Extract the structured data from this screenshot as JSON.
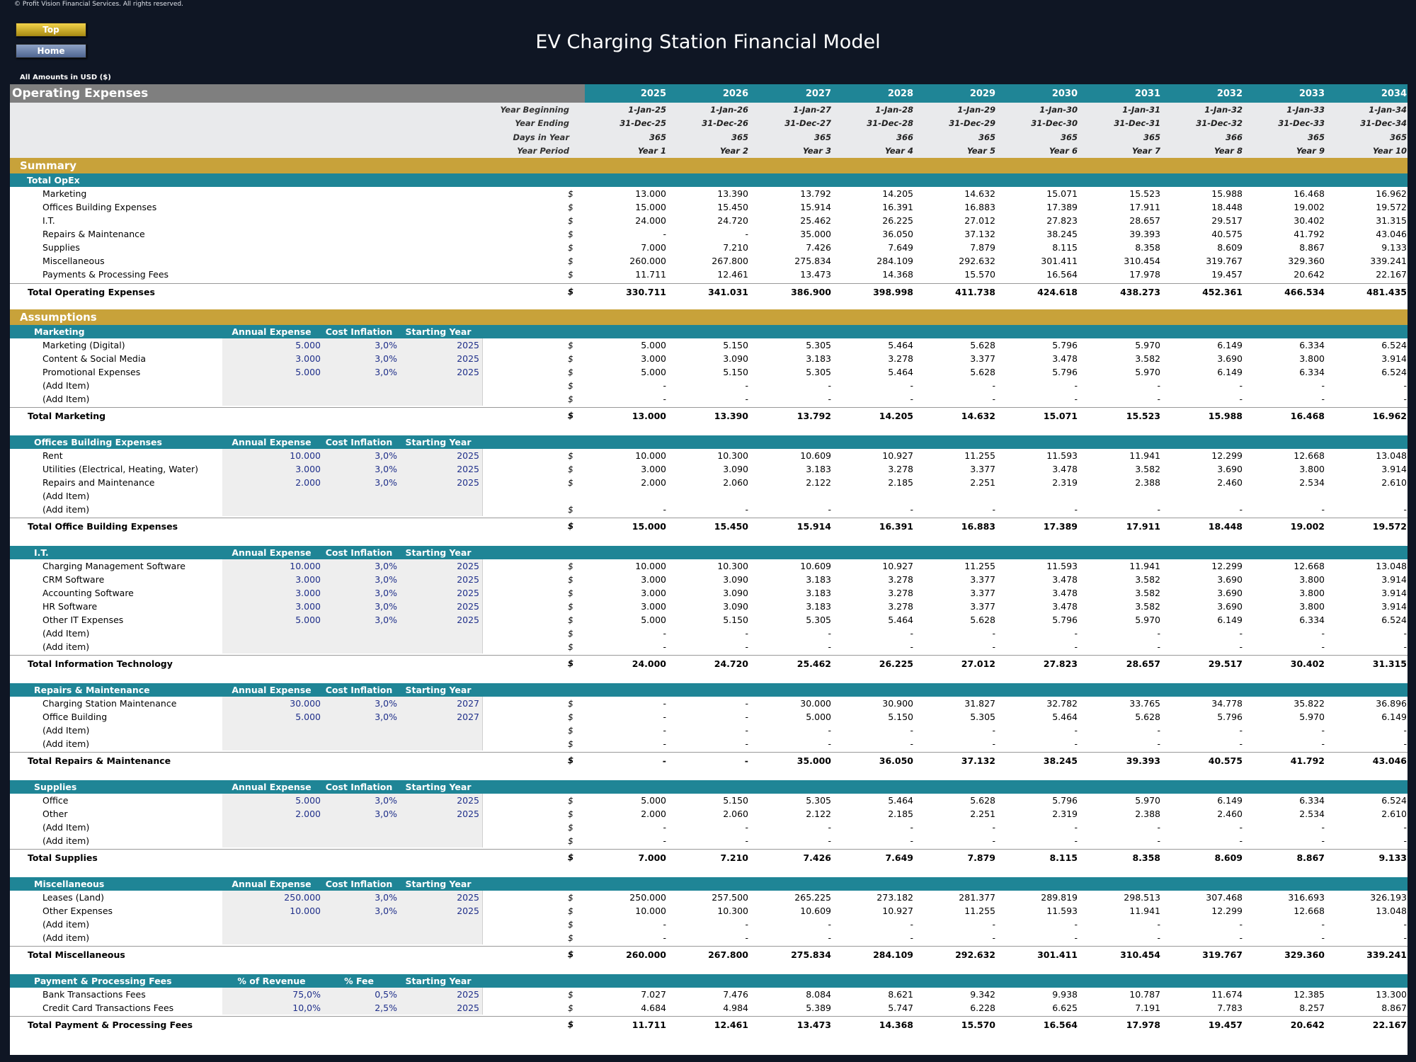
{
  "copyright": "© Profit Vision Financial Services. All rights reserved.",
  "nav": {
    "top": "Top",
    "home": "Home"
  },
  "title": "EV Charging Station Financial Model",
  "amounts_note": "All Amounts in  USD ($)",
  "section_title": "Operating Expenses",
  "years": [
    "2025",
    "2026",
    "2027",
    "2028",
    "2029",
    "2030",
    "2031",
    "2032",
    "2033",
    "2034"
  ],
  "header_rows": [
    {
      "label": "Year Beginning",
      "values": [
        "1-Jan-25",
        "1-Jan-26",
        "1-Jan-27",
        "1-Jan-28",
        "1-Jan-29",
        "1-Jan-30",
        "1-Jan-31",
        "1-Jan-32",
        "1-Jan-33",
        "1-Jan-34"
      ]
    },
    {
      "label": "Year Ending",
      "values": [
        "31-Dec-25",
        "31-Dec-26",
        "31-Dec-27",
        "31-Dec-28",
        "31-Dec-29",
        "31-Dec-30",
        "31-Dec-31",
        "31-Dec-32",
        "31-Dec-33",
        "31-Dec-34"
      ]
    },
    {
      "label": "Days in Year",
      "values": [
        "365",
        "365",
        "365",
        "366",
        "365",
        "365",
        "365",
        "366",
        "365",
        "365"
      ]
    },
    {
      "label": "Year Period",
      "values": [
        "Year 1",
        "Year 2",
        "Year 3",
        "Year 4",
        "Year 5",
        "Year 6",
        "Year 7",
        "Year 8",
        "Year 9",
        "Year 10"
      ]
    }
  ],
  "summary": {
    "title": "Summary",
    "group": "Total OpEx",
    "currency": "$",
    "rows": [
      {
        "label": "Marketing",
        "values": [
          "13.000",
          "13.390",
          "13.792",
          "14.205",
          "14.632",
          "15.071",
          "15.523",
          "15.988",
          "16.468",
          "16.962"
        ]
      },
      {
        "label": "Offices Building Expenses",
        "values": [
          "15.000",
          "15.450",
          "15.914",
          "16.391",
          "16.883",
          "17.389",
          "17.911",
          "18.448",
          "19.002",
          "19.572"
        ]
      },
      {
        "label": "I.T.",
        "values": [
          "24.000",
          "24.720",
          "25.462",
          "26.225",
          "27.012",
          "27.823",
          "28.657",
          "29.517",
          "30.402",
          "31.315"
        ]
      },
      {
        "label": "Repairs & Maintenance",
        "values": [
          "-",
          "-",
          "35.000",
          "36.050",
          "37.132",
          "38.245",
          "39.393",
          "40.575",
          "41.792",
          "43.046"
        ]
      },
      {
        "label": "Supplies",
        "values": [
          "7.000",
          "7.210",
          "7.426",
          "7.649",
          "7.879",
          "8.115",
          "8.358",
          "8.609",
          "8.867",
          "9.133"
        ]
      },
      {
        "label": "Miscellaneous",
        "values": [
          "260.000",
          "267.800",
          "275.834",
          "284.109",
          "292.632",
          "301.411",
          "310.454",
          "319.767",
          "329.360",
          "339.241"
        ]
      },
      {
        "label": "Payments & Processing Fees",
        "values": [
          "11.711",
          "12.461",
          "13.473",
          "14.368",
          "15.570",
          "16.564",
          "17.978",
          "19.457",
          "20.642",
          "22.167"
        ]
      }
    ],
    "total": {
      "label": "Total Operating Expenses",
      "values": [
        "330.711",
        "341.031",
        "386.900",
        "398.998",
        "411.738",
        "424.618",
        "438.273",
        "452.361",
        "466.534",
        "481.435"
      ]
    }
  },
  "assumptions_title": "Assumptions",
  "groups": [
    {
      "name": "Marketing",
      "cols": [
        "Annual Expense",
        "Cost Inflation",
        "Starting Year"
      ],
      "rows": [
        {
          "label": "Marketing (Digital)",
          "a": "5.000",
          "b": "3,0%",
          "c": "2025",
          "cur": "$",
          "values": [
            "5.000",
            "5.150",
            "5.305",
            "5.464",
            "5.628",
            "5.796",
            "5.970",
            "6.149",
            "6.334",
            "6.524"
          ]
        },
        {
          "label": "Content & Social Media",
          "a": "3.000",
          "b": "3,0%",
          "c": "2025",
          "cur": "$",
          "values": [
            "3.000",
            "3.090",
            "3.183",
            "3.278",
            "3.377",
            "3.478",
            "3.582",
            "3.690",
            "3.800",
            "3.914"
          ]
        },
        {
          "label": "Promotional Expenses",
          "a": "5.000",
          "b": "3,0%",
          "c": "2025",
          "cur": "$",
          "values": [
            "5.000",
            "5.150",
            "5.305",
            "5.464",
            "5.628",
            "5.796",
            "5.970",
            "6.149",
            "6.334",
            "6.524"
          ]
        },
        {
          "label": "(Add Item)",
          "a": "",
          "b": "",
          "c": "",
          "cur": "$",
          "values": [
            "-",
            "-",
            "-",
            "-",
            "-",
            "-",
            "-",
            "-",
            "-",
            "-"
          ]
        },
        {
          "label": "(Add Item)",
          "a": "",
          "b": "",
          "c": "",
          "cur": "$",
          "values": [
            "-",
            "-",
            "-",
            "-",
            "-",
            "-",
            "-",
            "-",
            "-",
            "-"
          ]
        }
      ],
      "total": {
        "label": "Total Marketing",
        "values": [
          "13.000",
          "13.390",
          "13.792",
          "14.205",
          "14.632",
          "15.071",
          "15.523",
          "15.988",
          "16.468",
          "16.962"
        ]
      }
    },
    {
      "name": "Offices Building Expenses",
      "cols": [
        "Annual Expense",
        "Cost Inflation",
        "Starting Year"
      ],
      "rows": [
        {
          "label": "Rent",
          "a": "10.000",
          "b": "3,0%",
          "c": "2025",
          "cur": "$",
          "values": [
            "10.000",
            "10.300",
            "10.609",
            "10.927",
            "11.255",
            "11.593",
            "11.941",
            "12.299",
            "12.668",
            "13.048"
          ]
        },
        {
          "label": "Utilities (Electrical, Heating, Water)",
          "a": "3.000",
          "b": "3,0%",
          "c": "2025",
          "cur": "$",
          "values": [
            "3.000",
            "3.090",
            "3.183",
            "3.278",
            "3.377",
            "3.478",
            "3.582",
            "3.690",
            "3.800",
            "3.914"
          ]
        },
        {
          "label": "Repairs and Maintenance",
          "a": "2.000",
          "b": "3,0%",
          "c": "2025",
          "cur": "$",
          "values": [
            "2.000",
            "2.060",
            "2.122",
            "2.185",
            "2.251",
            "2.319",
            "2.388",
            "2.460",
            "2.534",
            "2.610"
          ]
        },
        {
          "label": "(Add Item)",
          "a": "",
          "b": "",
          "c": "",
          "cur": "",
          "values": [
            "",
            "",
            "",
            "",
            "",
            "",
            "",
            "",
            "",
            ""
          ]
        },
        {
          "label": "(Add item)",
          "a": "",
          "b": "",
          "c": "",
          "cur": "$",
          "values": [
            "-",
            "-",
            "-",
            "-",
            "-",
            "-",
            "-",
            "-",
            "-",
            "-"
          ]
        }
      ],
      "total": {
        "label": "Total Office Building Expenses",
        "values": [
          "15.000",
          "15.450",
          "15.914",
          "16.391",
          "16.883",
          "17.389",
          "17.911",
          "18.448",
          "19.002",
          "19.572"
        ]
      }
    },
    {
      "name": "I.T.",
      "cols": [
        "Annual Expense",
        "Cost Inflation",
        "Starting Year"
      ],
      "rows": [
        {
          "label": "Charging Management Software",
          "a": "10.000",
          "b": "3,0%",
          "c": "2025",
          "cur": "$",
          "values": [
            "10.000",
            "10.300",
            "10.609",
            "10.927",
            "11.255",
            "11.593",
            "11.941",
            "12.299",
            "12.668",
            "13.048"
          ]
        },
        {
          "label": "CRM Software",
          "a": "3.000",
          "b": "3,0%",
          "c": "2025",
          "cur": "$",
          "values": [
            "3.000",
            "3.090",
            "3.183",
            "3.278",
            "3.377",
            "3.478",
            "3.582",
            "3.690",
            "3.800",
            "3.914"
          ]
        },
        {
          "label": "Accounting Software",
          "a": "3.000",
          "b": "3,0%",
          "c": "2025",
          "cur": "$",
          "values": [
            "3.000",
            "3.090",
            "3.183",
            "3.278",
            "3.377",
            "3.478",
            "3.582",
            "3.690",
            "3.800",
            "3.914"
          ]
        },
        {
          "label": "HR Software",
          "a": "3.000",
          "b": "3,0%",
          "c": "2025",
          "cur": "$",
          "values": [
            "3.000",
            "3.090",
            "3.183",
            "3.278",
            "3.377",
            "3.478",
            "3.582",
            "3.690",
            "3.800",
            "3.914"
          ]
        },
        {
          "label": "Other IT Expenses",
          "a": "5.000",
          "b": "3,0%",
          "c": "2025",
          "cur": "$",
          "values": [
            "5.000",
            "5.150",
            "5.305",
            "5.464",
            "5.628",
            "5.796",
            "5.970",
            "6.149",
            "6.334",
            "6.524"
          ]
        },
        {
          "label": "(Add Item)",
          "a": "",
          "b": "",
          "c": "",
          "cur": "$",
          "values": [
            "-",
            "-",
            "-",
            "-",
            "-",
            "-",
            "-",
            "-",
            "-",
            "-"
          ]
        },
        {
          "label": "(Add item)",
          "a": "",
          "b": "",
          "c": "",
          "cur": "$",
          "values": [
            "-",
            "-",
            "-",
            "-",
            "-",
            "-",
            "-",
            "-",
            "-",
            "-"
          ]
        }
      ],
      "total": {
        "label": "Total Information Technology",
        "values": [
          "24.000",
          "24.720",
          "25.462",
          "26.225",
          "27.012",
          "27.823",
          "28.657",
          "29.517",
          "30.402",
          "31.315"
        ]
      }
    },
    {
      "name": "Repairs & Maintenance",
      "cols": [
        "Annual Expense",
        "Cost Inflation",
        "Starting Year"
      ],
      "rows": [
        {
          "label": "Charging Station Maintenance",
          "a": "30.000",
          "b": "3,0%",
          "c": "2027",
          "cur": "$",
          "values": [
            "-",
            "-",
            "30.000",
            "30.900",
            "31.827",
            "32.782",
            "33.765",
            "34.778",
            "35.822",
            "36.896"
          ]
        },
        {
          "label": "Office Building",
          "a": "5.000",
          "b": "3,0%",
          "c": "2027",
          "cur": "$",
          "values": [
            "-",
            "-",
            "5.000",
            "5.150",
            "5.305",
            "5.464",
            "5.628",
            "5.796",
            "5.970",
            "6.149"
          ]
        },
        {
          "label": "(Add Item)",
          "a": "",
          "b": "",
          "c": "",
          "cur": "$",
          "values": [
            "-",
            "-",
            "-",
            "-",
            "-",
            "-",
            "-",
            "-",
            "-",
            "-"
          ]
        },
        {
          "label": "(Add item)",
          "a": "",
          "b": "",
          "c": "",
          "cur": "$",
          "values": [
            "-",
            "-",
            "-",
            "-",
            "-",
            "-",
            "-",
            "-",
            "-",
            "-"
          ]
        }
      ],
      "total": {
        "label": "Total Repairs & Maintenance",
        "values": [
          "-",
          "-",
          "35.000",
          "36.050",
          "37.132",
          "38.245",
          "39.393",
          "40.575",
          "41.792",
          "43.046"
        ]
      }
    },
    {
      "name": "Supplies",
      "cols": [
        "Annual Expense",
        "Cost Inflation",
        "Starting Year"
      ],
      "rows": [
        {
          "label": "Office",
          "a": "5.000",
          "b": "3,0%",
          "c": "2025",
          "cur": "$",
          "values": [
            "5.000",
            "5.150",
            "5.305",
            "5.464",
            "5.628",
            "5.796",
            "5.970",
            "6.149",
            "6.334",
            "6.524"
          ]
        },
        {
          "label": "Other",
          "a": "2.000",
          "b": "3,0%",
          "c": "2025",
          "cur": "$",
          "values": [
            "2.000",
            "2.060",
            "2.122",
            "2.185",
            "2.251",
            "2.319",
            "2.388",
            "2.460",
            "2.534",
            "2.610"
          ]
        },
        {
          "label": "(Add Item)",
          "a": "",
          "b": "",
          "c": "",
          "cur": "$",
          "values": [
            "-",
            "-",
            "-",
            "-",
            "-",
            "-",
            "-",
            "-",
            "-",
            "-"
          ]
        },
        {
          "label": "(Add item)",
          "a": "",
          "b": "",
          "c": "",
          "cur": "$",
          "values": [
            "-",
            "-",
            "-",
            "-",
            "-",
            "-",
            "-",
            "-",
            "-",
            "-"
          ]
        }
      ],
      "total": {
        "label": "Total Supplies",
        "values": [
          "7.000",
          "7.210",
          "7.426",
          "7.649",
          "7.879",
          "8.115",
          "8.358",
          "8.609",
          "8.867",
          "9.133"
        ]
      }
    },
    {
      "name": "Miscellaneous",
      "cols": [
        "Annual Expense",
        "Cost Inflation",
        "Starting Year"
      ],
      "rows": [
        {
          "label": "Leases (Land)",
          "a": "250.000",
          "b": "3,0%",
          "c": "2025",
          "cur": "$",
          "values": [
            "250.000",
            "257.500",
            "265.225",
            "273.182",
            "281.377",
            "289.819",
            "298.513",
            "307.468",
            "316.693",
            "326.193"
          ]
        },
        {
          "label": "Other Expenses",
          "a": "10.000",
          "b": "3,0%",
          "c": "2025",
          "cur": "$",
          "values": [
            "10.000",
            "10.300",
            "10.609",
            "10.927",
            "11.255",
            "11.593",
            "11.941",
            "12.299",
            "12.668",
            "13.048"
          ]
        },
        {
          "label": "(Add item)",
          "a": "",
          "b": "",
          "c": "",
          "cur": "$",
          "values": [
            "-",
            "-",
            "-",
            "-",
            "-",
            "-",
            "-",
            "-",
            "-",
            "-"
          ]
        },
        {
          "label": "(Add item)",
          "a": "",
          "b": "",
          "c": "",
          "cur": "$",
          "values": [
            "-",
            "-",
            "-",
            "-",
            "-",
            "-",
            "-",
            "-",
            "-",
            "-"
          ]
        }
      ],
      "total": {
        "label": "Total Miscellaneous",
        "values": [
          "260.000",
          "267.800",
          "275.834",
          "284.109",
          "292.632",
          "301.411",
          "310.454",
          "319.767",
          "329.360",
          "339.241"
        ]
      }
    },
    {
      "name": "Payment & Processing Fees",
      "cols": [
        "% of Revenue",
        "% Fee",
        "Starting Year"
      ],
      "rows": [
        {
          "label": "Bank Transactions Fees",
          "a": "75,0%",
          "b": "0,5%",
          "c": "2025",
          "cur": "$",
          "values": [
            "7.027",
            "7.476",
            "8.084",
            "8.621",
            "9.342",
            "9.938",
            "10.787",
            "11.674",
            "12.385",
            "13.300"
          ]
        },
        {
          "label": "Credit Card Transactions Fees",
          "a": "10,0%",
          "b": "2,5%",
          "c": "2025",
          "cur": "$",
          "values": [
            "4.684",
            "4.984",
            "5.389",
            "5.747",
            "6.228",
            "6.625",
            "7.191",
            "7.783",
            "8.257",
            "8.867"
          ]
        }
      ],
      "total": {
        "label": "Total Payment & Processing Fees",
        "values": [
          "11.711",
          "12.461",
          "13.473",
          "14.368",
          "15.570",
          "16.564",
          "17.978",
          "19.457",
          "20.642",
          "22.167"
        ]
      }
    }
  ]
}
